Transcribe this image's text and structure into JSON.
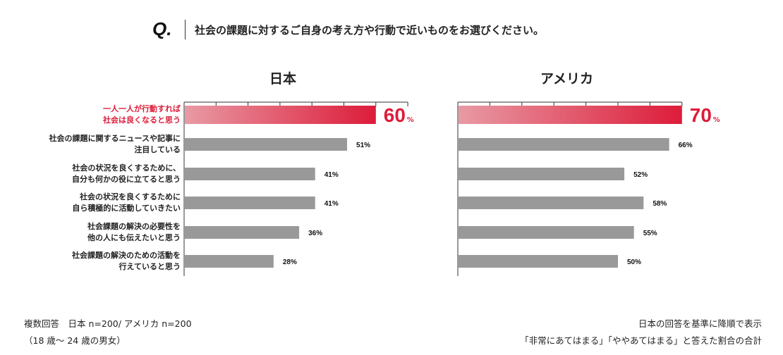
{
  "question": {
    "mark": "Q.",
    "text": "社会の課題に対するご自身の考え方や行動で近いものをお選びください。"
  },
  "colors": {
    "highlight": "#dd1c3a",
    "highlight_light": "#e89aa4",
    "bar": "#999999"
  },
  "chart_data": [
    {
      "type": "bar",
      "title": "日本",
      "orientation": "horizontal",
      "xlim": [
        0,
        70
      ],
      "tick_step": 10,
      "categories": [
        "一人一人が行動すれば\n社会は良くなると思う",
        "社会の課題に関するニュースや記事に\n注目している",
        "社会の状況を良くするために、\n自分も何かの役に立てると思う",
        "社会の状況を良くするために\n自ら積極的に活動していきたい",
        "社会課題の解決の必要性を\n他の人にも伝えたいと思う",
        "社会課題の解決のための活動を\n行えていると思う"
      ],
      "values": [
        60,
        51,
        41,
        41,
        36,
        28
      ],
      "unit": "%",
      "highlight_index": 0
    },
    {
      "type": "bar",
      "title": "アメリカ",
      "orientation": "horizontal",
      "xlim": [
        0,
        70
      ],
      "tick_step": 10,
      "values": [
        70,
        66,
        52,
        58,
        55,
        50
      ],
      "unit": "%",
      "highlight_index": 0
    }
  ],
  "footer": {
    "left1": "複数回答　日本 n=200/ アメリカ n=200",
    "left2": "（18 歳〜 24 歳の男女）",
    "right1": "日本の回答を基準に降順で表示",
    "right2": "「非常にあてはまる」「ややあてはまる」と答えた割合の合計"
  }
}
